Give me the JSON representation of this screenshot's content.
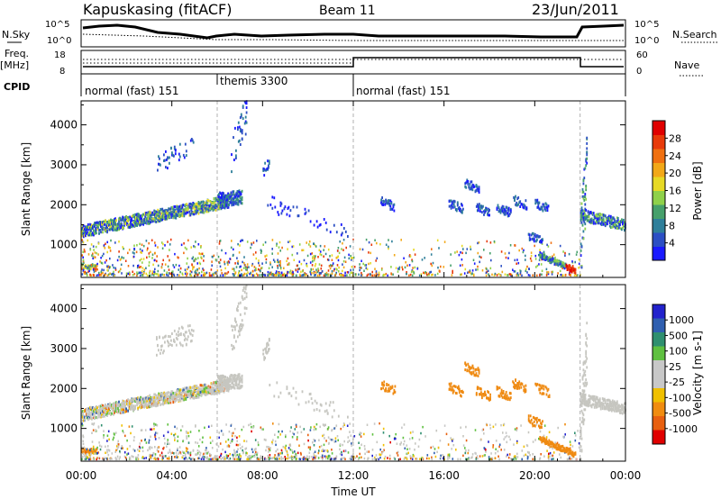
{
  "header": {
    "station": "Kapuskasing (fitACF)",
    "beam": "Beam 11",
    "date": "23/Jun/2011"
  },
  "left_labels": {
    "nsky": "N.Sky",
    "freq": "Freq.",
    "freq_unit": "[MHz]",
    "cpid": "CPID"
  },
  "right_labels": {
    "nsearch": "N.Search",
    "nave": "Nave"
  },
  "small_axes": {
    "noise_ticks": [
      "10^5",
      "10^0"
    ],
    "freq_ticks": [
      "18",
      "8"
    ],
    "nave_ticks": [
      "60",
      "0"
    ]
  },
  "cpid_segments": [
    {
      "label": "normal (fast) 151",
      "start": 0,
      "end": 6
    },
    {
      "label": "themis 3300",
      "start": 6,
      "end": 12
    },
    {
      "label": "normal (fast) 151",
      "start": 12,
      "end": 24
    }
  ],
  "chart_data": [
    {
      "type": "heatmap",
      "title": "Power",
      "ylabel": "Slant Range [km]",
      "xlabel": "Time UT",
      "x_ticks": [
        "00:00",
        "04:00",
        "08:00",
        "12:00",
        "16:00",
        "20:00",
        "00:00"
      ],
      "x_range_hours": [
        0,
        24
      ],
      "y_ticks": [
        1000,
        2000,
        3000,
        4000
      ],
      "ylim": [
        180,
        4600
      ],
      "colorbar": {
        "label": "Power [dB]",
        "ticks": [
          "4",
          "8",
          "12",
          "16",
          "20",
          "24",
          "28"
        ],
        "colors": [
          "#1a1aff",
          "#2c4fc4",
          "#2f7f9a",
          "#46a06b",
          "#8fd14a",
          "#e7d925",
          "#f2a818",
          "#f07010",
          "#e83a0a",
          "#e00000"
        ]
      },
      "vertical_markers_hours": [
        6,
        12,
        22
      ]
    },
    {
      "type": "heatmap",
      "title": "Velocity",
      "ylabel": "Slant Range [km]",
      "xlabel": "Time UT",
      "x_ticks": [
        "00:00",
        "04:00",
        "08:00",
        "12:00",
        "16:00",
        "20:00",
        "00:00"
      ],
      "x_range_hours": [
        0,
        24
      ],
      "y_ticks": [
        1000,
        2000,
        3000,
        4000
      ],
      "ylim": [
        180,
        4600
      ],
      "colorbar": {
        "label": "Velocity [m s-1]",
        "ticks": [
          "1000",
          "500",
          "100",
          "25",
          "-25",
          "-100",
          "-500",
          "-1000"
        ],
        "colors": [
          "#2222cc",
          "#2f5fb0",
          "#2f8f6f",
          "#5fc040",
          "#c8c8c8",
          "#c8c8c8",
          "#f0c000",
          "#f08c10",
          "#e86010",
          "#e00000"
        ]
      },
      "vertical_markers_hours": [
        6,
        12,
        22
      ]
    }
  ],
  "colors": {
    "grey": "#c6c6c0",
    "orange": "#ef8a12",
    "dashed": "#b0b0b0"
  }
}
